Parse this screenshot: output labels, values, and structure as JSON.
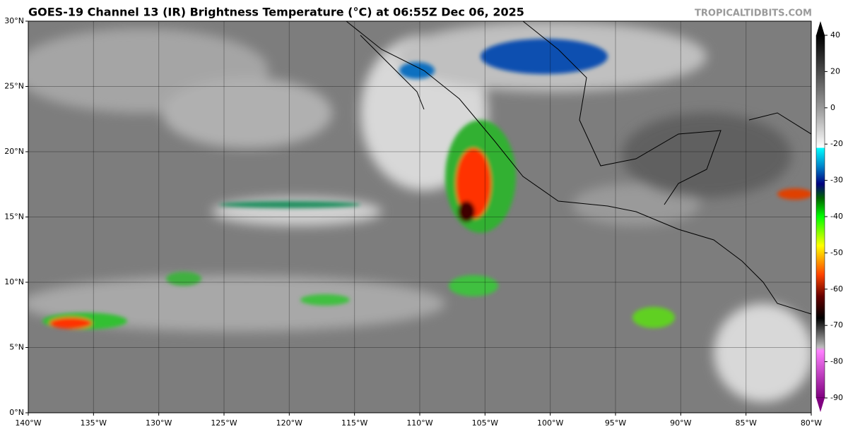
{
  "header": {
    "title": "GOES-19 Channel 13 (IR) Brightness Temperature (°C) at 06:55Z Dec 06, 2025",
    "credit": "TROPICALTIDBITS.COM"
  },
  "map": {
    "lat_labels": [
      "0°N",
      "5°N",
      "10°N",
      "15°N",
      "20°N",
      "25°N",
      "30°N"
    ],
    "lon_labels": [
      "140°W",
      "135°W",
      "130°W",
      "125°W",
      "120°W",
      "115°W",
      "110°W",
      "105°W",
      "100°W",
      "95°W",
      "90°W",
      "85°W",
      "80°W"
    ]
  },
  "colorbar": {
    "labels": [
      "40",
      "20",
      "0",
      "-20",
      "-30",
      "-40",
      "-50",
      "-60",
      "-70",
      "-80",
      "-90"
    ]
  }
}
